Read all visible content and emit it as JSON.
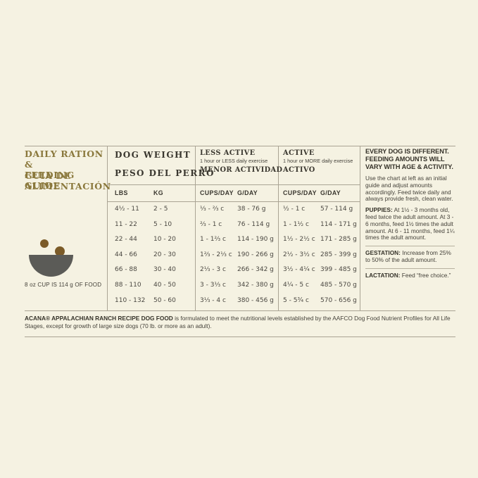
{
  "colors": {
    "background": "#f5f2e2",
    "accent_gold": "#8a783c",
    "heading_text": "#3a372f",
    "body_text": "#45423a",
    "rule_line": "#aaa494",
    "bowl": "#5b5b57",
    "kibble": "#7b5b28"
  },
  "left_panel": {
    "title_en_line1": "DAILY RATION &",
    "title_en_line2": "FEEDING GUIDE",
    "title_es_line1": "GUIA DE",
    "title_es_line2": "ALIMENTACIÓN",
    "cup_note": "8 oz CUP IS 114 g OF FOOD"
  },
  "table": {
    "dog_weight_en": "DOG WEIGHT",
    "dog_weight_es": "PESO DEL PERRO",
    "less_active_en": "LESS ACTIVE",
    "less_active_sub": "1 hour or LESS daily exercise",
    "less_active_es": "MENOR ACTIVIDAD",
    "active_en": "ACTIVE",
    "active_sub": "1 hour or MORE daily exercise",
    "active_es": "ACTIVO",
    "col_headers": [
      "LBS",
      "KG",
      "CUPS/DAY",
      "G/DAY",
      "CUPS/DAY",
      "G/DAY"
    ],
    "rows": [
      [
        "4½ - 11",
        "2 - 5",
        "⅓ - ⅔ c",
        "38 - 76 g",
        "½ - 1 c",
        "57 - 114 g"
      ],
      [
        "11 - 22",
        "5 - 10",
        "⅔ - 1 c",
        "76 - 114 g",
        "1 - 1½ c",
        "114 - 171 g"
      ],
      [
        "22 - 44",
        "10 - 20",
        "1 - 1⅔ c",
        "114 - 190 g",
        "1½ - 2½ c",
        "171 - 285 g"
      ],
      [
        "44 - 66",
        "20 - 30",
        "1⅔ - 2⅓ c",
        "190 - 266 g",
        "2½ - 3½ c",
        "285 - 399 g"
      ],
      [
        "66 - 88",
        "30 - 40",
        "2⅓ - 3 c",
        "266 - 342 g",
        "3½ - 4¼ c",
        "399 - 485 g"
      ],
      [
        "88 - 110",
        "40 - 50",
        "3 - 3⅓ c",
        "342 - 380 g",
        "4¼ - 5 c",
        "485 - 570 g"
      ],
      [
        "110 - 132",
        "50 - 60",
        "3⅓ - 4 c",
        "380 - 456 g",
        "5 - 5¾ c",
        "570 - 656 g"
      ]
    ]
  },
  "right_panel": {
    "heading": "EVERY DOG IS DIFFERENT. FEEDING AMOUNTS WILL VARY WITH AGE & ACTIVITY.",
    "intro": "Use the chart at left as an initial guide and adjust amounts accordingly. Feed twice daily and always provide fresh, clean water.",
    "puppies_label": "PUPPIES:",
    "puppies_text": "At 1½ - 3 months old, feed twice the adult amount. At 3 - 6 months, feed 1½ times the adult amount. At 6 - 11 months, feed 1¼ times the adult amount.",
    "gestation_label": "GESTATION:",
    "gestation_text": "Increase from 25% to 50% of the adult amount.",
    "lactation_label": "LACTATION:",
    "lactation_text": "Feed “free choice.”"
  },
  "footer": {
    "bold": "ACANA® APPALACHIAN RANCH RECIPE DOG FOOD",
    "text": " is formulated to meet the nutritional levels established by the AAFCO Dog Food Nutrient Profiles for All Life Stages, except for growth of large size dogs (70 lb. or more as an adult)."
  }
}
